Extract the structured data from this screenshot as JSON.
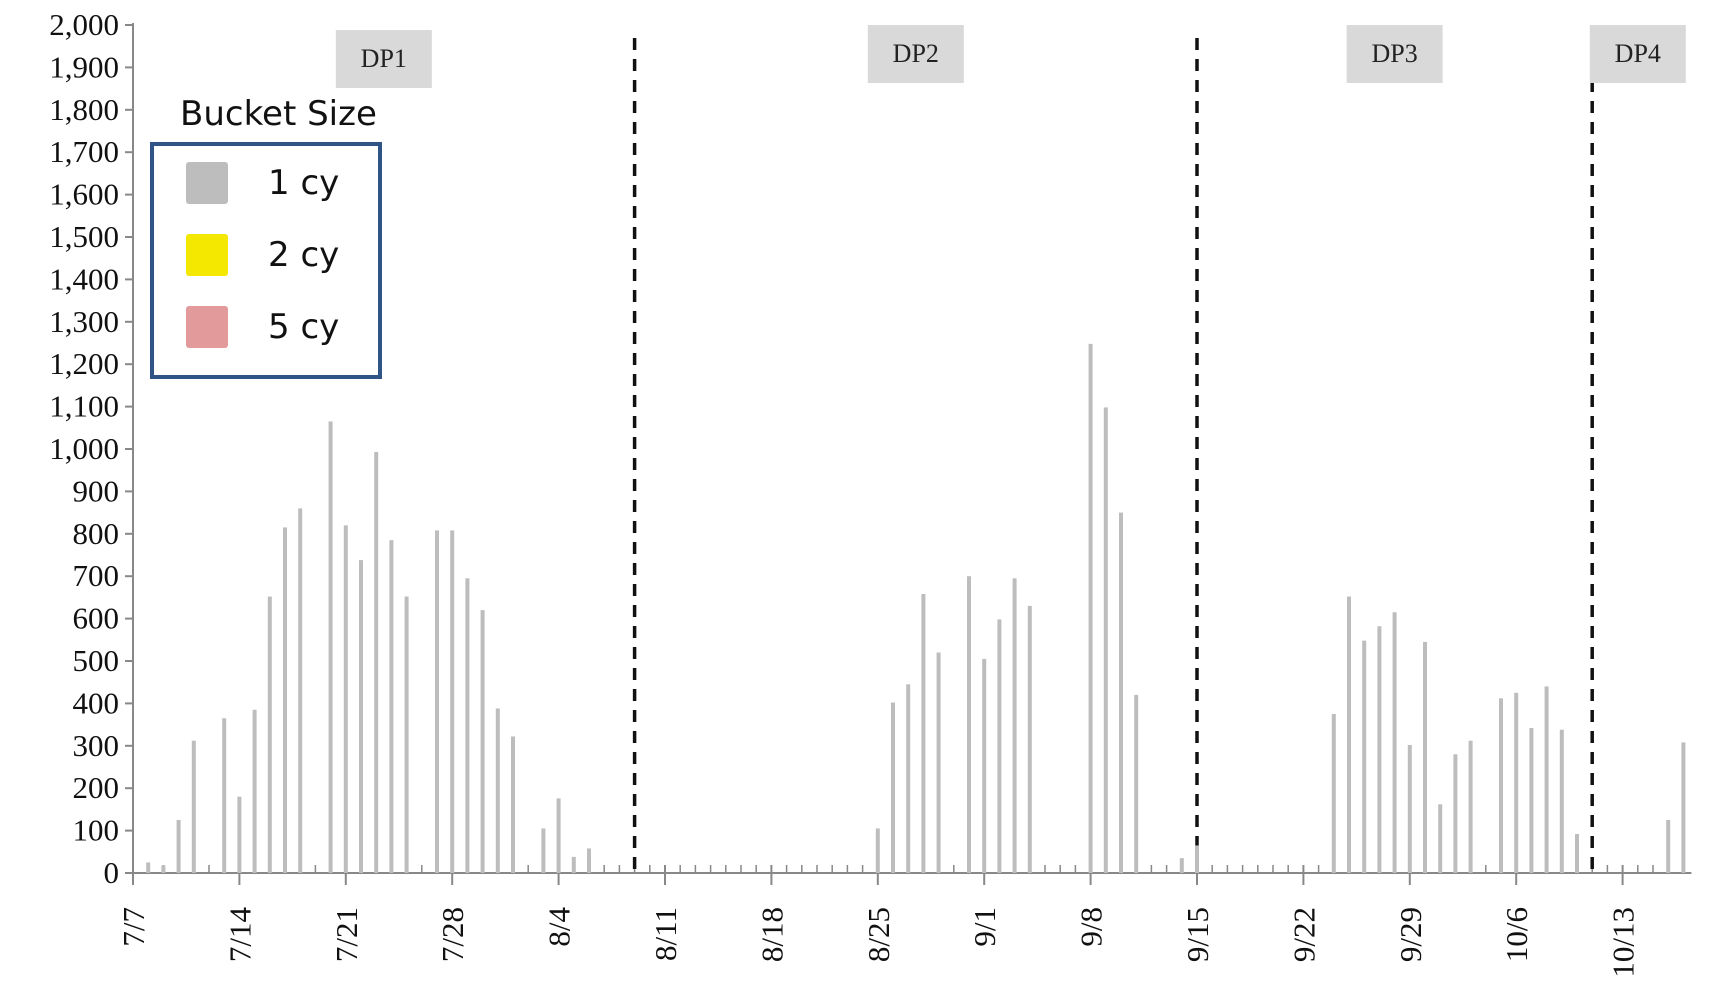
{
  "chart_data": {
    "type": "bar",
    "title": "",
    "xlabel": "",
    "ylabel": "",
    "ylim": [
      0,
      2000
    ],
    "yticks": [
      "0",
      "100",
      "200",
      "300",
      "400",
      "500",
      "600",
      "700",
      "800",
      "900",
      "1,000",
      "1,100",
      "1,200",
      "1,300",
      "1,400",
      "1,500",
      "1,600",
      "1,700",
      "1,800",
      "1,900",
      "2,000"
    ],
    "xticks": [
      "7/7",
      "7/14",
      "7/21",
      "7/28",
      "8/4",
      "8/11",
      "8/18",
      "8/25",
      "9/1",
      "9/8",
      "9/15",
      "9/22",
      "9/29",
      "10/6",
      "10/13"
    ],
    "x_start": "7/7",
    "x_end": "10/17",
    "legend": {
      "title": "Bucket Size",
      "placement": "top-left",
      "entries": [
        {
          "label": "1 cy",
          "color": "#bdbdbd"
        },
        {
          "label": "2 cy",
          "color": "#f5e800"
        },
        {
          "label": "5 cy",
          "color": "#e39a9a"
        }
      ]
    },
    "phases": [
      {
        "label": "DP1",
        "start": "7/7",
        "end": "8/9"
      },
      {
        "label": "DP2",
        "start": "8/9",
        "end": "9/15"
      },
      {
        "label": "DP3",
        "start": "9/15",
        "end": "10/11"
      },
      {
        "label": "DP4",
        "start": "10/11",
        "end": "10/17"
      }
    ],
    "series": [
      {
        "name": "1 cy",
        "color": "#bdbdbd",
        "points": [
          {
            "x": "7/8",
            "y": 25
          },
          {
            "x": "7/9",
            "y": 18
          },
          {
            "x": "7/10",
            "y": 125
          },
          {
            "x": "7/11",
            "y": 312
          },
          {
            "x": "7/13",
            "y": 365
          },
          {
            "x": "7/14",
            "y": 180
          },
          {
            "x": "7/15",
            "y": 385
          },
          {
            "x": "7/16",
            "y": 652
          },
          {
            "x": "7/17",
            "y": 815
          },
          {
            "x": "7/18",
            "y": 860
          },
          {
            "x": "7/20",
            "y": 1065
          },
          {
            "x": "7/21",
            "y": 820
          },
          {
            "x": "7/22",
            "y": 738
          },
          {
            "x": "7/23",
            "y": 993
          },
          {
            "x": "7/24",
            "y": 785
          },
          {
            "x": "7/25",
            "y": 652
          },
          {
            "x": "7/27",
            "y": 808
          },
          {
            "x": "7/28",
            "y": 808
          },
          {
            "x": "7/29",
            "y": 695
          },
          {
            "x": "7/30",
            "y": 620
          },
          {
            "x": "7/31",
            "y": 388
          },
          {
            "x": "8/1",
            "y": 322
          },
          {
            "x": "8/3",
            "y": 105
          },
          {
            "x": "8/4",
            "y": 176
          },
          {
            "x": "8/5",
            "y": 38
          },
          {
            "x": "8/6",
            "y": 58
          },
          {
            "x": "8/25",
            "y": 105
          },
          {
            "x": "8/26",
            "y": 402
          },
          {
            "x": "8/27",
            "y": 445
          },
          {
            "x": "8/28",
            "y": 658
          },
          {
            "x": "8/29",
            "y": 520
          },
          {
            "x": "8/31",
            "y": 700
          },
          {
            "x": "9/1",
            "y": 505
          },
          {
            "x": "9/2",
            "y": 598
          },
          {
            "x": "9/3",
            "y": 695
          },
          {
            "x": "9/4",
            "y": 630
          },
          {
            "x": "9/8",
            "y": 1248
          },
          {
            "x": "9/9",
            "y": 1098
          },
          {
            "x": "9/10",
            "y": 850
          },
          {
            "x": "9/11",
            "y": 420
          },
          {
            "x": "9/14",
            "y": 35
          },
          {
            "x": "9/15",
            "y": 65
          },
          {
            "x": "9/24",
            "y": 375
          },
          {
            "x": "9/25",
            "y": 652
          },
          {
            "x": "9/26",
            "y": 548
          },
          {
            "x": "9/27",
            "y": 582
          },
          {
            "x": "9/28",
            "y": 615
          },
          {
            "x": "9/29",
            "y": 302
          },
          {
            "x": "9/30",
            "y": 545
          },
          {
            "x": "10/1",
            "y": 162
          },
          {
            "x": "10/2",
            "y": 280
          },
          {
            "x": "10/3",
            "y": 312
          },
          {
            "x": "10/5",
            "y": 412
          },
          {
            "x": "10/6",
            "y": 425
          },
          {
            "x": "10/7",
            "y": 342
          },
          {
            "x": "10/8",
            "y": 440
          },
          {
            "x": "10/9",
            "y": 338
          },
          {
            "x": "10/10",
            "y": 92
          },
          {
            "x": "10/16",
            "y": 125
          },
          {
            "x": "10/17",
            "y": 308
          }
        ]
      },
      {
        "name": "2 cy",
        "color": "#f5e800",
        "points": []
      },
      {
        "name": "5 cy",
        "color": "#e39a9a",
        "points": []
      }
    ]
  }
}
